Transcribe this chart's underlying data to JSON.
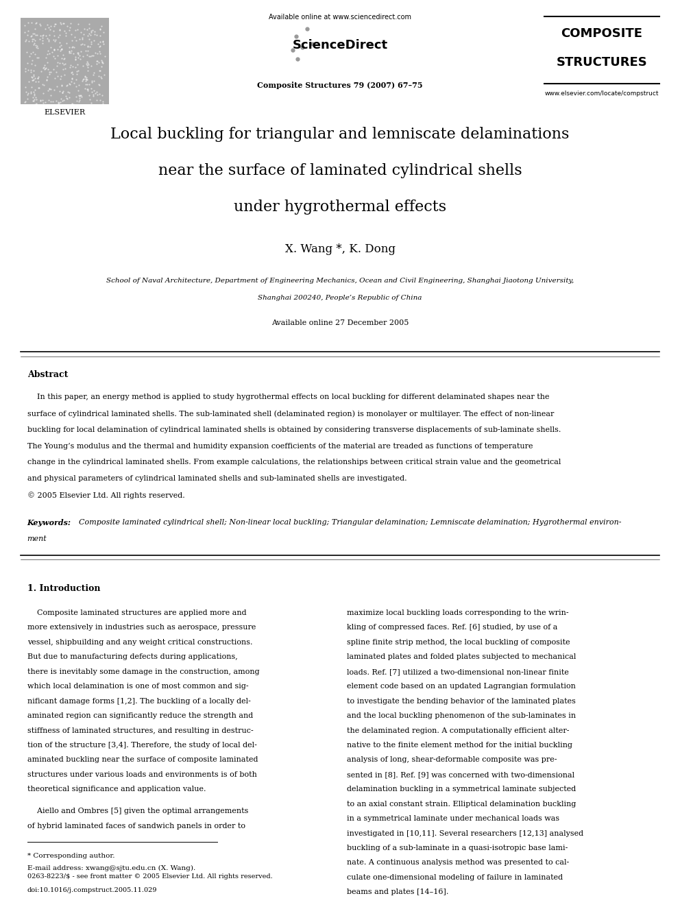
{
  "page_width": 9.92,
  "page_height": 13.23,
  "bg_color": "#ffffff",
  "header": {
    "elsevier_text": "ELSEVIER",
    "available_online": "Available online at www.sciencedirect.com",
    "sciencedirect": "ScienceDirect",
    "journal_name": "Composite Structures 79 (2007) 67–75",
    "composite_structures_line1": "COMPOSITE",
    "composite_structures_line2": "STRUCTURES",
    "website": "www.elsevier.com/locate/compstruct"
  },
  "title_line1": "Local buckling for triangular and lemniscate delaminations",
  "title_line2": "near the surface of laminated cylindrical shells",
  "title_line3": "under hygrothermal effects",
  "authors": "X. Wang *, K. Dong",
  "affiliation_line1": "School of Naval Architecture, Department of Engineering Mechanics, Ocean and Civil Engineering, Shanghai Jiaotong University,",
  "affiliation_line2": "Shanghai 200240, People’s Republic of China",
  "available_online_date": "Available online 27 December 2005",
  "abstract_heading": "Abstract",
  "abstract_text": "In this paper, an energy method is applied to study hygrothermal effects on local buckling for different delaminated shapes near the\nsurface of cylindrical laminated shells. The sub-laminated shell (delaminated region) is monolayer or multilayer. The effect of non-linear\nbuckling for local delamination of cylindrical laminated shells is obtained by considering transverse displacements of sub-laminate shells.\nThe Young’s modulus and the thermal and humidity expansion coefficients of the material are treaded as functions of temperature\nchange in the cylindrical laminated shells. From example calculations, the relationships between critical strain value and the geometrical\nand physical parameters of cylindrical laminated shells and sub-laminated shells are investigated.\n© 2005 Elsevier Ltd. All rights reserved.",
  "keywords_label": "Keywords:",
  "keywords_text": "Composite laminated cylindrical shell; Non-linear local buckling; Triangular delamination; Lemniscate delamination; Hygrothermal environ-\nment",
  "section1_heading": "1. Introduction",
  "section1_col1_para1": "    Composite laminated structures are applied more and\nmore extensively in industries such as aerospace, pressure\nvessel, shipbuilding and any weight critical constructions.\nBut due to manufacturing defects during applications,\nthere is inevitably some damage in the construction, among\nwhich local delamination is one of most common and sig-\nnificant damage forms [1,2]. The buckling of a locally del-\naminated region can significantly reduce the strength and\nstiffness of laminated structures, and resulting in destruc-\ntion of the structure [3,4]. Therefore, the study of local del-\naminated buckling near the surface of composite laminated\nstructures under various loads and environments is of both\ntheoretical significance and application value.",
  "section1_col1_para2": "    Aiello and Ombres [5] given the optimal arrangements\nof hybrid laminated faces of sandwich panels in order to",
  "section1_col2_para1": "maximize local buckling loads corresponding to the wrin-\nkling of compressed faces. Ref. [6] studied, by use of a\nspline finite strip method, the local buckling of composite\nlaminated plates and folded plates subjected to mechanical\nloads. Ref. [7] utilized a two-dimensional non-linear finite\nelement code based on an updated Lagrangian formulation\nto investigate the bending behavior of the laminated plates\nand the local buckling phenomenon of the sub-laminates in\nthe delaminated region. A computationally efficient alter-\nnative to the finite element method for the initial buckling\nanalysis of long, shear-deformable composite was pre-\nsented in [8]. Ref. [9] was concerned with two-dimensional\ndelamination buckling in a symmetrical laminate subjected\nto an axial constant strain. Elliptical delamination buckling\nin a symmetrical laminate under mechanical loads was\ninvestigated in [10,11]. Several researchers [12,13] analysed\nbuckling of a sub-laminate in a quasi-isotropic base lami-\nnate. A continuous analysis method was presented to cal-\nculate one-dimensional modeling of failure in laminated\nbeams and plates [14–16].",
  "footnote_corresponding": "* Corresponding author.",
  "footnote_email": "E-mail address: xwang@sjtu.edu.cn (X. Wang).",
  "footer_issn": "0263-8223/$ - see front matter © 2005 Elsevier Ltd. All rights reserved.",
  "footer_doi": "doi:10.1016/j.compstruct.2005.11.029"
}
